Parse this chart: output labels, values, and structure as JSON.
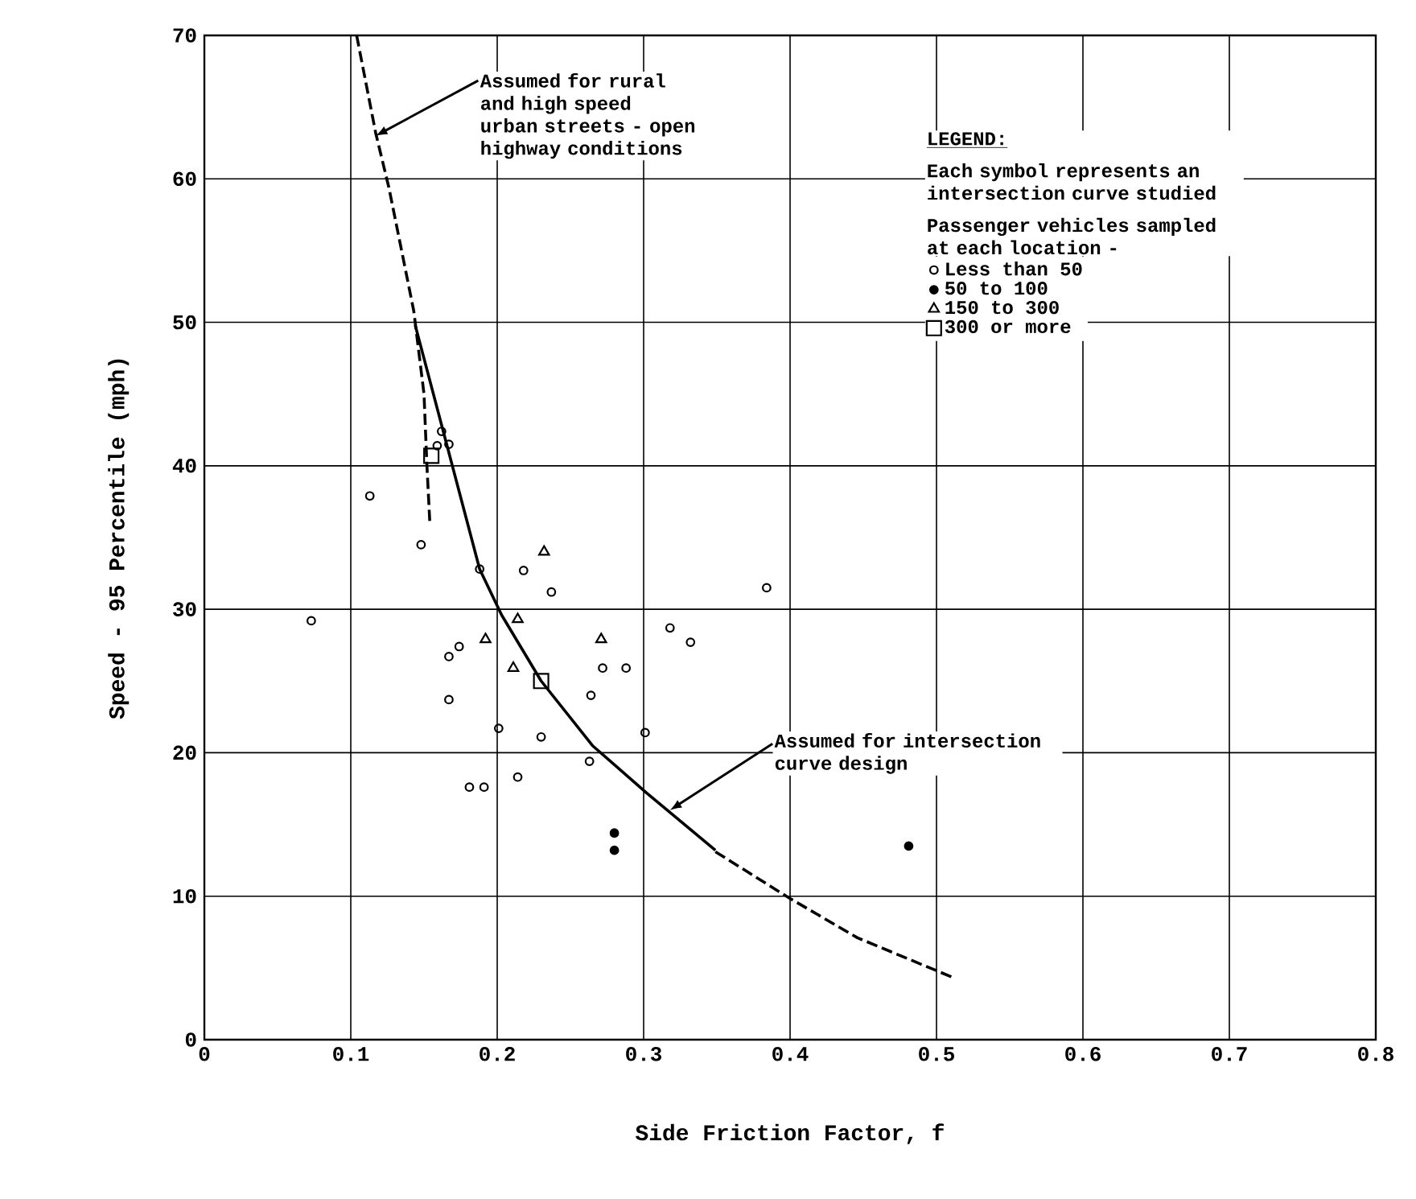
{
  "chart_data": {
    "type": "scatter",
    "xlabel": "Side Friction Factor, f",
    "ylabel": "Speed - 95 Percentile (mph)",
    "xlim": [
      0,
      0.8
    ],
    "ylim": [
      0,
      70
    ],
    "xticks": [
      0,
      0.1,
      0.2,
      0.3,
      0.4,
      0.5,
      0.6,
      0.7,
      0.8
    ],
    "yticks": [
      0,
      10,
      20,
      30,
      40,
      50,
      60,
      70
    ],
    "grid": true,
    "legend": "top right",
    "legend_title": "LEGEND:",
    "annotations": [
      {
        "text": "Assumed for rural and high speed urban streets - open highway conditions",
        "x": 0.117,
        "y": 63
      },
      {
        "text": "Assumed for intersection curve design",
        "x": 0.318,
        "y": 16
      },
      "Each symbol represents an intersection curve studied",
      "Passenger vehicles sampled at each location -"
    ],
    "series": [
      {
        "name": "Less than 50",
        "color": "#000000",
        "marker": "circle",
        "x": [
          0.113,
          0.148,
          0.188,
          0.218,
          0.237,
          0.073,
          0.384,
          0.318,
          0.332,
          0.174,
          0.167,
          0.272,
          0.288,
          0.264,
          0.167,
          0.201,
          0.301,
          0.23,
          0.263,
          0.181,
          0.191,
          0.214,
          0.162,
          0.159,
          0.167
        ],
        "values": [
          37.9,
          34.5,
          32.8,
          32.7,
          31.2,
          29.2,
          31.5,
          28.7,
          27.7,
          27.4,
          26.7,
          25.9,
          25.9,
          24.0,
          23.7,
          21.7,
          21.4,
          21.1,
          19.4,
          17.6,
          17.6,
          18.3,
          42.4,
          41.4,
          41.5
        ]
      },
      {
        "name": "50 to 100",
        "color": "#000000",
        "marker": "filled circle",
        "x": [
          0.28,
          0.28,
          0.481
        ],
        "values": [
          14.4,
          13.2,
          13.5
        ]
      },
      {
        "name": "150 to 300",
        "color": "#000000",
        "marker": "triangle",
        "x": [
          0.232,
          0.214,
          0.192,
          0.271,
          0.211
        ],
        "values": [
          34.0,
          29.3,
          27.9,
          27.9,
          25.9
        ]
      },
      {
        "name": "300 or more",
        "color": "#000000",
        "marker": "square",
        "x": [
          0.23,
          0.155
        ],
        "values": [
          25.0,
          40.7
        ]
      },
      {
        "type": "line",
        "color": "#000000",
        "line_style": "dashed",
        "x": [
          0.104,
          0.117,
          0.126,
          0.143,
          0.15,
          0.152,
          0.154
        ],
        "values": [
          70,
          63.2,
          59.4,
          50.8,
          45,
          40,
          36
        ]
      },
      {
        "type": "line",
        "color": "#000000",
        "line_style": "solid",
        "x": [
          0.144,
          0.188,
          0.203,
          0.23,
          0.265,
          0.302,
          0.349
        ],
        "values": [
          49.8,
          32.8,
          29.6,
          25.0,
          20.5,
          17.2,
          13.2
        ]
      },
      {
        "type": "line",
        "color": "#000000",
        "line_style": "dashed",
        "x": [
          0.349,
          0.399,
          0.446,
          0.512
        ],
        "values": [
          13.1,
          9.9,
          7.1,
          4.3
        ]
      }
    ]
  }
}
